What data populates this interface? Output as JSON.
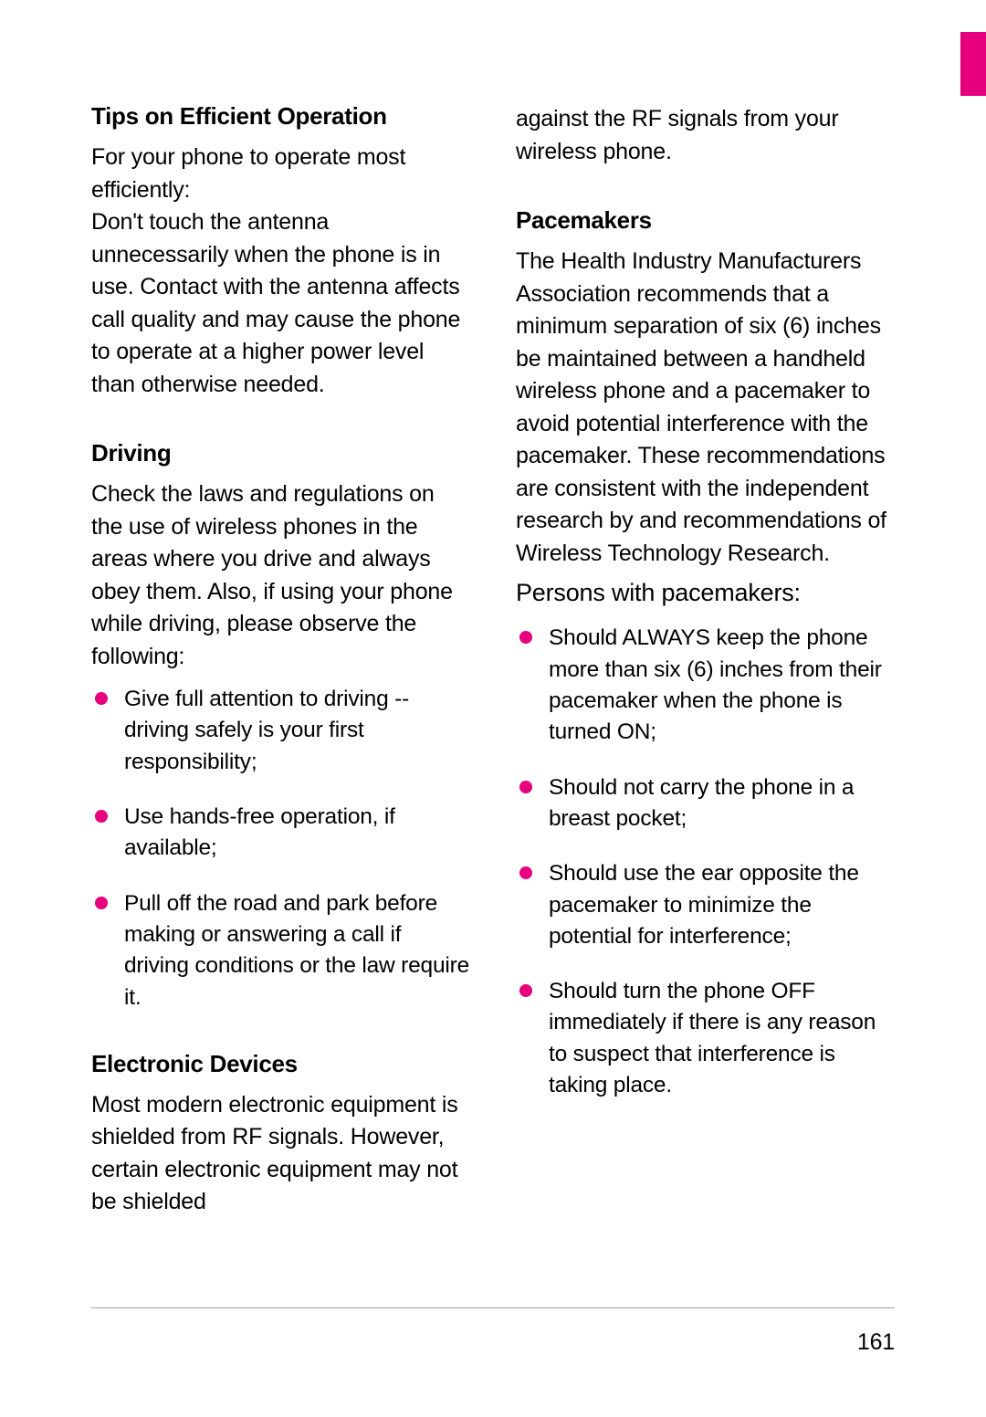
{
  "colors": {
    "accent": "#e6007e",
    "text": "#000000",
    "footer_line": "#9e9e9e",
    "bullet": "#e6007e",
    "background": "#ffffff"
  },
  "tab": {
    "color": "#e6007e"
  },
  "page_number": "161",
  "left": {
    "s1": {
      "heading": "Tips on Efficient Operation",
      "p1": "For your phone to operate most efficiently:",
      "p2": "Don't touch the antenna unnecessarily when the phone is in use. Contact with the antenna affects call quality and may cause the phone to operate at a higher power level than otherwise needed."
    },
    "s2": {
      "heading": "Driving",
      "p1": "Check the laws and regulations on the use of wireless phones in the areas where you drive and always obey them. Also, if using your phone while driving, please observe the following:",
      "bullets": [
        "Give full attention to driving -- driving safely is your first responsibility;",
        "Use hands-free operation, if available;",
        "Pull off the road and park before making or answering a call if driving conditions or the law require it."
      ]
    },
    "s3": {
      "heading": "Electronic Devices",
      "p1": "Most modern electronic equipment is shielded from RF signals. However, certain electronic equipment may not be shielded"
    }
  },
  "right": {
    "s0": {
      "p1": "against the RF signals from your wireless phone."
    },
    "s1": {
      "heading": "Pacemakers",
      "p1": "The Health Industry Manufacturers Association recommends that a minimum separation of six (6) inches be maintained between a handheld wireless phone and a pacemaker to avoid potential interference with the pacemaker. These recommendations are consistent with the independent research by and recommendations of Wireless Technology Research.",
      "lead": "Persons with pacemakers:",
      "bullets": [
        "Should ALWAYS keep the phone more than six (6) inches from their pacemaker when the phone is turned ON;",
        "Should not carry the phone in a breast pocket;",
        "Should use the ear opposite the pacemaker to minimize the potential for interference;",
        "Should turn the phone OFF immediately if there is any reason to suspect that interference is taking place."
      ]
    }
  }
}
